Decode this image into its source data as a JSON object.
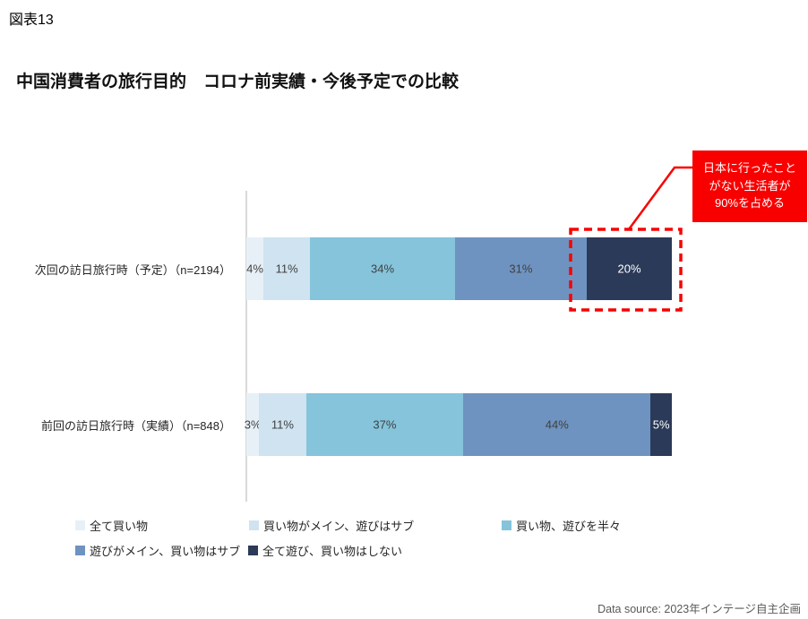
{
  "figure_label": "図表13",
  "title": "中国消費者の旅行目的　コロナ前実績・今後予定での比較",
  "callout": {
    "text": "日本に行ったことがない生活者が90%を占める",
    "bg_color": "#f80000",
    "text_color": "#ffffff"
  },
  "chart_data": {
    "type": "bar",
    "orientation": "horizontal",
    "stacked": true,
    "title": "中国消費者の旅行目的　コロナ前実績・今後予定での比較",
    "value_unit": "%",
    "xlim": [
      0,
      100
    ],
    "grid": false,
    "legend_position": "bottom",
    "categories": [
      "次回の訪日旅行時（予定）（n=2194）",
      "前回の訪日旅行時（実績）（n=848）"
    ],
    "series": [
      {
        "name": "全て買い物",
        "color": "#e7f0f7",
        "label_color": "#404040",
        "values": [
          4,
          3
        ]
      },
      {
        "name": "買い物がメイン、遊びはサブ",
        "color": "#cfe3f0",
        "label_color": "#404040",
        "values": [
          11,
          11
        ]
      },
      {
        "name": "買い物、遊びを半々",
        "color": "#85c4db",
        "label_color": "#404040",
        "values": [
          34,
          37
        ]
      },
      {
        "name": "遊びがメイン、買い物はサブ",
        "color": "#6e93c0",
        "label_color": "#404040",
        "values": [
          31,
          44
        ]
      },
      {
        "name": "全て遊び、買い物はしない",
        "color": "#2b3a58",
        "label_color": "#ffffff",
        "values": [
          20,
          5
        ]
      }
    ],
    "annotation": {
      "text": "日本に行ったことがない生活者が90%を占める",
      "target_category": "次回の訪日旅行時（予定）（n=2194）",
      "target_series": "全て遊び、買い物はしない",
      "target_value": 20,
      "highlight_color": "#f80000"
    }
  },
  "data_source": "Data source: 2023年インテージ自主企画"
}
